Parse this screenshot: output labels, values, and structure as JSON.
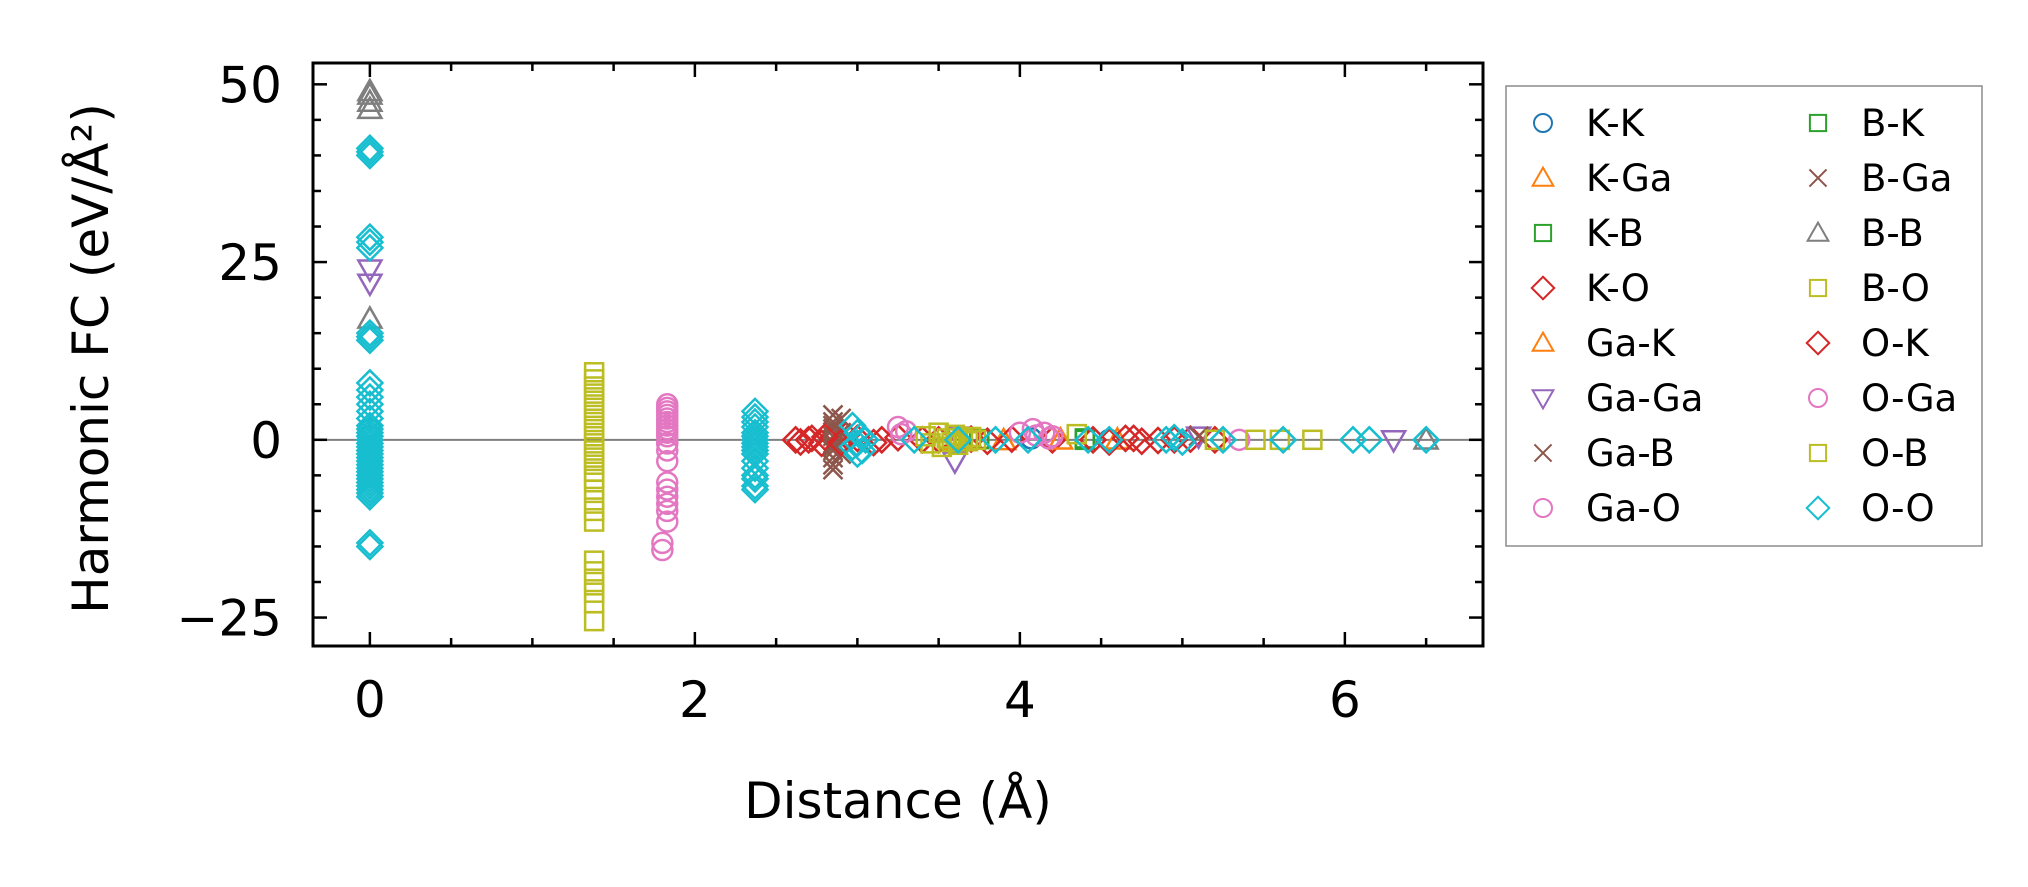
{
  "chart_data": {
    "type": "scatter",
    "title": "",
    "xlabel": "Distance (Å)",
    "ylabel": "Harmonic FC (eV/Å²)",
    "xlim": [
      -0.35,
      6.85
    ],
    "ylim": [
      -29,
      53
    ],
    "x_ticks": [
      0,
      2,
      4,
      6
    ],
    "x_tick_labels": [
      "0",
      "2",
      "4",
      "6"
    ],
    "y_ticks": [
      -25,
      0,
      25,
      50
    ],
    "y_tick_labels": [
      "−25",
      "0",
      "25",
      "50"
    ],
    "grid": false,
    "zero_line": true,
    "legend": {
      "placement": "outside-right",
      "columns": 2
    },
    "series": [
      {
        "name": "K-K",
        "marker": "circle",
        "color": "#1f77b4",
        "x": [
          0,
          0,
          0,
          4.07,
          4.55
        ],
        "y": [
          1.5,
          0.5,
          -1.0,
          0.2,
          0.0
        ]
      },
      {
        "name": "K-Ga",
        "marker": "triangle-up",
        "color": "#ff7f0e",
        "x": [
          3.62,
          3.9,
          4.6
        ],
        "y": [
          0.1,
          -0.1,
          0.0
        ]
      },
      {
        "name": "K-B",
        "marker": "square",
        "color": "#2ca02c",
        "x": [
          3.75,
          4.4
        ],
        "y": [
          0.1,
          0.0
        ]
      },
      {
        "name": "K-O",
        "marker": "diamond",
        "color": "#d62728",
        "x": [
          2.65,
          2.72,
          2.78,
          2.85,
          2.93,
          3.1,
          3.25,
          3.4,
          3.8,
          3.95,
          4.2,
          4.55,
          4.7,
          4.85,
          5.05,
          5.2
        ],
        "y": [
          -0.3,
          0.2,
          -0.5,
          0.3,
          0.6,
          -0.4,
          0.3,
          0.0,
          -0.2,
          0.1,
          0.0,
          -0.3,
          0.2,
          -0.1,
          0.1,
          0.0
        ]
      },
      {
        "name": "Ga-K",
        "marker": "triangle-up",
        "color": "#ff7f0e",
        "x": [
          3.6,
          4.25
        ],
        "y": [
          -0.2,
          0.0
        ]
      },
      {
        "name": "Ga-Ga",
        "marker": "triangle-down",
        "color": "#9467bd",
        "x": [
          0,
          0,
          3.6,
          3.62,
          5.1,
          6.3
        ],
        "y": [
          22,
          24,
          -3,
          0.5,
          0.5,
          0.0
        ]
      },
      {
        "name": "Ga-B",
        "marker": "x",
        "color": "#8c564b",
        "x": [
          2.85,
          2.85,
          2.85,
          2.85,
          2.85,
          2.85,
          2.85,
          2.85,
          2.85,
          2.85,
          2.85
        ],
        "y": [
          3.5,
          2.5,
          1.5,
          0.5,
          -0.5,
          -1.5,
          -2.5,
          -3.5,
          2.0,
          -1.0,
          -4.2
        ]
      },
      {
        "name": "Ga-O",
        "marker": "circle",
        "color": "#e377c2",
        "x": [
          1.8,
          1.8,
          1.83,
          1.83,
          1.83,
          1.83,
          1.83,
          1.83,
          1.83,
          1.83,
          1.83,
          1.83,
          1.83,
          1.83,
          1.83,
          1.83,
          1.83,
          1.83,
          1.83,
          1.83,
          1.83,
          1.83,
          3.25,
          3.3,
          4.08,
          4.15,
          4.2,
          5.35
        ],
        "y": [
          -15.5,
          -14.5,
          -10,
          -9,
          -8,
          -7,
          -6,
          -3,
          -1.5,
          -0.5,
          0.5,
          1.0,
          1.5,
          2.0,
          2.5,
          3.0,
          3.5,
          4.0,
          4.5,
          5.0,
          -0.5,
          -11.5,
          1.8,
          1.2,
          1.5,
          1.0,
          0.5,
          0.0
        ]
      },
      {
        "name": "B-K",
        "marker": "square",
        "color": "#2ca02c",
        "x": [
          4.4
        ],
        "y": [
          0.2
        ]
      },
      {
        "name": "B-Ga",
        "marker": "x",
        "color": "#8c564b",
        "x": [
          2.9,
          2.9,
          2.9,
          5.1
        ],
        "y": [
          3.0,
          -2.0,
          1.0,
          0.5
        ]
      },
      {
        "name": "B-B",
        "marker": "triangle-up",
        "color": "#7f7f7f",
        "x": [
          0,
          0,
          0,
          0,
          0,
          6.5
        ],
        "y": [
          46.5,
          47.5,
          48.5,
          49.0,
          17.0,
          0.0
        ]
      },
      {
        "name": "B-O",
        "marker": "square",
        "color": "#bcbd22",
        "x": [
          1.38,
          1.38,
          1.38,
          1.38,
          1.38,
          1.38,
          1.38,
          1.38,
          1.38,
          1.38,
          1.38,
          1.38,
          1.38,
          1.38,
          1.38,
          1.38,
          1.38,
          1.38,
          1.38,
          1.38,
          1.38,
          1.38,
          1.38,
          1.38,
          1.38,
          1.38
        ],
        "y": [
          9.5,
          8.5,
          7.5,
          6.5,
          5.5,
          4.5,
          3.5,
          2.5,
          1.5,
          0.5,
          -0.5,
          -1.5,
          -2.5,
          -3.5,
          -4.5,
          -5.5,
          -7,
          -8.5,
          -10,
          -11.5,
          -17,
          -18.5,
          -20,
          -21.5,
          -23,
          -25.5
        ]
      },
      {
        "name": "O-K",
        "marker": "diamond",
        "color": "#d62728",
        "x": [
          2.62,
          2.7,
          2.8,
          2.9,
          3.0,
          3.15,
          3.5,
          3.7,
          4.45,
          4.65,
          4.75,
          4.95
        ],
        "y": [
          0.0,
          0.0,
          0.4,
          -0.4,
          0.2,
          0.0,
          0.0,
          0.1,
          0.0,
          0.2,
          -0.2,
          0.0
        ]
      },
      {
        "name": "O-Ga",
        "marker": "circle",
        "color": "#e377c2",
        "x": [
          3.27,
          4.0,
          4.1,
          4.18
        ],
        "y": [
          0.8,
          1.0,
          0.6,
          0.2
        ]
      },
      {
        "name": "O-B",
        "marker": "square",
        "color": "#bcbd22",
        "x": [
          3.42,
          3.45,
          3.5,
          3.52,
          3.55,
          3.58,
          3.6,
          3.62,
          3.65,
          3.68,
          3.7,
          3.73,
          4.35,
          5.2,
          5.45,
          5.6,
          5.8
        ],
        "y": [
          0.5,
          -0.5,
          1.0,
          -1.0,
          0.2,
          -0.3,
          0.7,
          -0.7,
          0.3,
          -0.2,
          0.4,
          0.0,
          0.8,
          0.0,
          0.0,
          0.0,
          0.0
        ]
      },
      {
        "name": "O-O",
        "marker": "diamond",
        "color": "#17becf",
        "x": [
          0,
          0,
          0,
          0,
          0,
          0,
          0,
          0,
          0,
          0,
          0,
          0,
          0,
          0,
          0,
          0,
          0,
          0,
          0,
          0,
          0,
          0,
          0,
          0,
          0,
          0,
          0,
          0,
          0,
          0,
          0,
          0,
          0,
          0,
          0,
          0,
          0,
          0,
          2.37,
          2.37,
          2.37,
          2.37,
          2.37,
          2.37,
          2.37,
          2.37,
          2.37,
          2.37,
          2.37,
          2.37,
          2.37,
          2.37,
          2.37,
          2.37,
          2.37,
          2.97,
          3.0,
          3.02,
          3.05,
          3.0,
          2.97,
          3.03,
          3.0,
          3.35,
          3.62,
          3.85,
          4.05,
          4.42,
          4.55,
          4.9,
          4.95,
          5.0,
          5.25,
          5.62,
          6.05,
          6.15,
          6.5
        ],
        "y": [
          41,
          40.5,
          40,
          28.5,
          27.8,
          27,
          15,
          14.5,
          14,
          8,
          7,
          6,
          5,
          4,
          3,
          2,
          1,
          0.5,
          0,
          -0.5,
          -1,
          -2,
          -2.5,
          -3,
          -3.5,
          -4,
          -4.5,
          -5,
          -5.5,
          -6,
          -6.5,
          -7,
          -7.5,
          -8,
          -14.5,
          -15,
          1.5,
          -1.5,
          4,
          3.2,
          2.5,
          1.8,
          1,
          0.5,
          0,
          -0.5,
          -1,
          -1.5,
          -2,
          -3,
          -4,
          -5,
          -5.5,
          -6.5,
          -7,
          2.0,
          1.0,
          0.5,
          0.0,
          -0.5,
          -1.0,
          -1.5,
          -2.0,
          0.0,
          0.0,
          0.0,
          0.0,
          0.0,
          0.0,
          0.0,
          0.3,
          -0.3,
          0.0,
          0.0,
          0.0,
          0.0,
          0.0
        ]
      }
    ]
  }
}
